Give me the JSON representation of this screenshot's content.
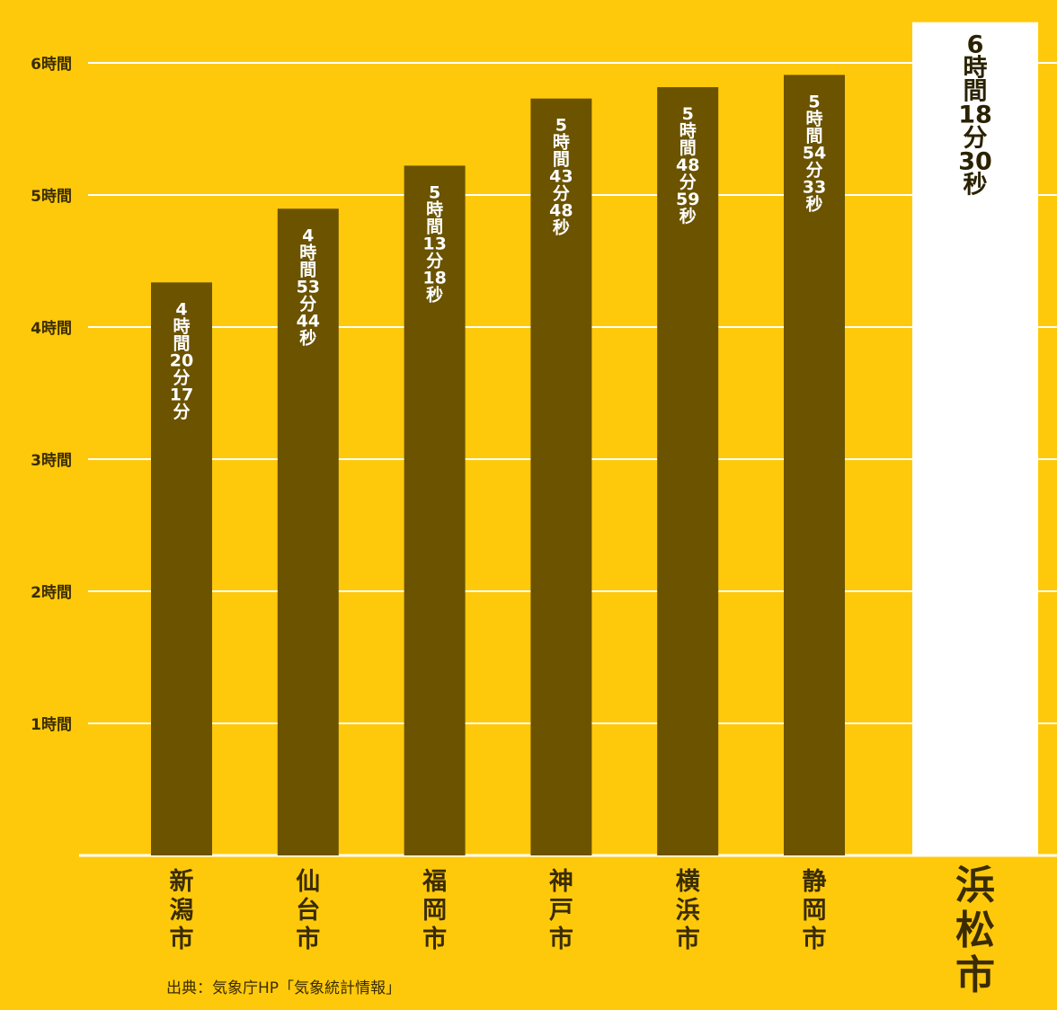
{
  "chart_data": {
    "type": "bar",
    "categories": [
      "新潟市",
      "仙台市",
      "福岡市",
      "神戸市",
      "横浜市",
      "静岡市",
      "浜松市"
    ],
    "values": [
      4.338,
      4.896,
      5.222,
      5.73,
      5.816,
      5.909,
      6.308
    ],
    "value_labels": [
      "4時間20分17分",
      "4時間53分44秒",
      "5時間13分18秒",
      "5時間43分48秒",
      "5時間48分59秒",
      "5時間54分33秒",
      "6時間18分30秒"
    ],
    "colors": [
      "#6b5300",
      "#6b5300",
      "#6b5300",
      "#6b5300",
      "#6b5300",
      "#6b5300",
      "#ffffff"
    ],
    "value_label_colors": [
      "#ffffff",
      "#ffffff",
      "#ffffff",
      "#ffffff",
      "#ffffff",
      "#ffffff",
      "#2a2200"
    ],
    "ylim": [
      0,
      6.476
    ],
    "yticks": [
      {
        "value": 1,
        "label": "1時間"
      },
      {
        "value": 2,
        "label": "2時間"
      },
      {
        "value": 3,
        "label": "3時間"
      },
      {
        "value": 4,
        "label": "4時間"
      },
      {
        "value": 5,
        "label": "5時間"
      },
      {
        "value": 6,
        "label": "6時間"
      }
    ],
    "grid": true,
    "source": "出典：気象庁HP「気象統計情報」"
  }
}
